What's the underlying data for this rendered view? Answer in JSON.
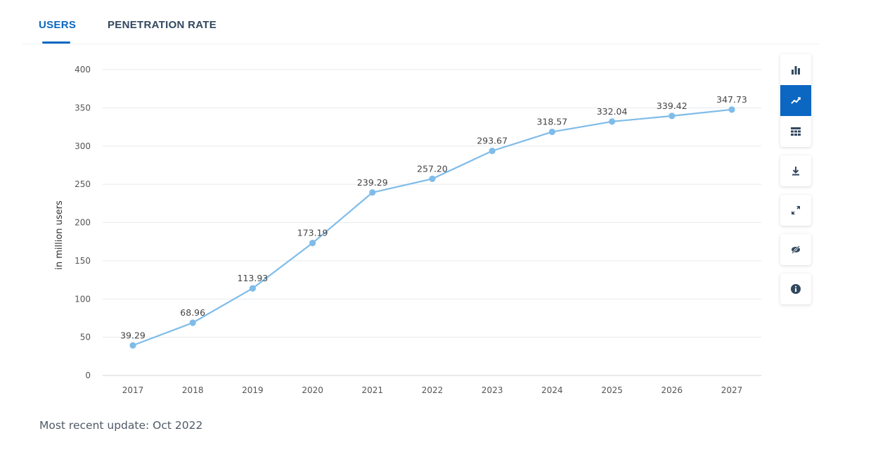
{
  "tabs": {
    "users": "USERS",
    "penetration": "PENETRATION RATE"
  },
  "colors": {
    "accent": "#0b67c2",
    "line": "#7fbce9",
    "grid": "#e6e9ed"
  },
  "toolbar": {
    "icons": [
      "bar-chart-icon",
      "line-chart-icon",
      "table-icon",
      "download-icon",
      "fullscreen-icon",
      "hide-icon",
      "info-icon"
    ],
    "active": "line-chart-icon"
  },
  "chart_data": {
    "type": "line",
    "x": [
      "2017",
      "2018",
      "2019",
      "2020",
      "2021",
      "2022",
      "2023",
      "2024",
      "2025",
      "2026",
      "2027"
    ],
    "series": [
      {
        "values": [
          39.29,
          68.96,
          113.93,
          173.19,
          239.29,
          257.2,
          293.67,
          318.57,
          332.04,
          339.42,
          347.73
        ]
      }
    ],
    "data_labels": [
      "39.29",
      "68.96",
      "113.93",
      "173.19",
      "239.29",
      "257.20",
      "293.67",
      "318.57",
      "332.04",
      "339.42",
      "347.73"
    ],
    "ylabel": "in million users",
    "xlabel": "",
    "ylim": [
      0,
      400
    ],
    "yticks": [
      0,
      50,
      100,
      150,
      200,
      250,
      300,
      350,
      400
    ],
    "grid": true
  },
  "footer": {
    "update_text": "Most recent update: Oct 2022"
  }
}
